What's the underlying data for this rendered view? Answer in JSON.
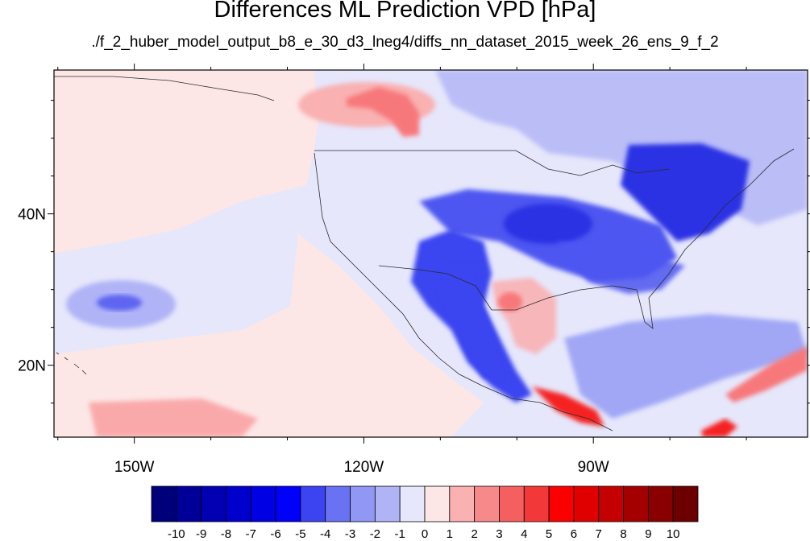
{
  "title": "Differences ML Prediction VPD [hPa]",
  "subtitle": "./f_2_huber_model_output_b8_e_30_d3_lneg4/diffs_nn_dataset_2015_week_26_ens_9_f_2",
  "map": {
    "projection": "lat-lon cylindrical equidistant",
    "lon_range": [
      -160.5,
      -62
    ],
    "lat_range": [
      10.5,
      59
    ],
    "x_ticks": [
      {
        "value": -150,
        "label": "150W"
      },
      {
        "value": -120,
        "label": "120W"
      },
      {
        "value": -90,
        "label": "90W"
      }
    ],
    "y_ticks": [
      {
        "value": 20,
        "label": "20N"
      },
      {
        "value": 40,
        "label": "40N"
      }
    ],
    "background_color": "#e6e7fb",
    "regions": [
      {
        "name": "northeast-pacific-light-pink",
        "color": "#fde6e6"
      },
      {
        "name": "eastern-pacific-pink-band",
        "color": "#fde6e6"
      },
      {
        "name": "hawaii-blue-patch",
        "color": "#b0b3f6"
      },
      {
        "name": "gulf-of-alaska-red-patch",
        "color": "#f7787a"
      },
      {
        "name": "southwest-blue",
        "color": "#3b44f0"
      },
      {
        "name": "central-us-blue",
        "color": "#4e57f0"
      },
      {
        "name": "northeast-us-blue",
        "color": "#2a30e4"
      },
      {
        "name": "texas-red-patch",
        "color": "#f7787a"
      },
      {
        "name": "mexico-blue",
        "color": "#3b44f0"
      },
      {
        "name": "central-america-red",
        "color": "#f52424"
      },
      {
        "name": "caribbean-red-streak",
        "color": "#f7787a"
      }
    ]
  },
  "colorbar": {
    "labels": [
      "-10",
      "-9",
      "-8",
      "-7",
      "-6",
      "-5",
      "-4",
      "-3",
      "-2",
      "-1",
      "0",
      "1",
      "2",
      "3",
      "4",
      "5",
      "6",
      "7",
      "8",
      "9",
      "10"
    ],
    "colors": [
      "#00007a",
      "#000098",
      "#0000b2",
      "#0000cc",
      "#0000e4",
      "#0000fc",
      "#3b44f0",
      "#6a72f4",
      "#9097f4",
      "#b0b3f6",
      "#e6e7fb",
      "#fde6e6",
      "#f9b1b2",
      "#f7898a",
      "#f55f60",
      "#f23838",
      "#fa0000",
      "#e00000",
      "#c40000",
      "#a50000",
      "#8a0000",
      "#6c0000"
    ]
  }
}
